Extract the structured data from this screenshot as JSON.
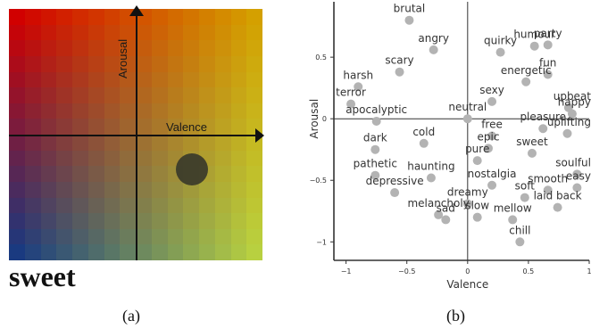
{
  "left_panel": {
    "valence_label": "Valence",
    "arousal_label": "Arousal",
    "word": "sweet",
    "caption": "(a)",
    "colors": {
      "top_left": "#d10000",
      "top_right": "#d4a000",
      "bottom_left": "#1a3a80",
      "bottom_right": "#b8d040",
      "marker": "#3a3a2a"
    }
  },
  "right_panel": {
    "caption": "(b)"
  },
  "chart_data": {
    "type": "scatter",
    "xlabel": "Valence",
    "ylabel": "Arousal",
    "xlim": [
      -1.1,
      1
    ],
    "ylim": [
      -1.15,
      0.95
    ],
    "x_ticks": [
      -1,
      -0.5,
      0,
      0.5,
      1
    ],
    "x_tick_labels": [
      "−1",
      "−0.5",
      "0",
      "0.5",
      "1"
    ],
    "y_ticks": [
      -1,
      -0.5,
      0,
      0.5
    ],
    "y_tick_labels": [
      "−1",
      "−0.5",
      "0",
      "0.5"
    ],
    "point_color": "#b3b3b3",
    "points": [
      {
        "label": "brutal",
        "x": -0.48,
        "y": 0.8
      },
      {
        "label": "angry",
        "x": -0.28,
        "y": 0.56
      },
      {
        "label": "quirky",
        "x": 0.27,
        "y": 0.54
      },
      {
        "label": "humour",
        "x": 0.55,
        "y": 0.59
      },
      {
        "label": "party",
        "x": 0.66,
        "y": 0.6
      },
      {
        "label": "scary",
        "x": -0.56,
        "y": 0.38
      },
      {
        "label": "fun",
        "x": 0.66,
        "y": 0.36
      },
      {
        "label": "harsh",
        "x": -0.9,
        "y": 0.26
      },
      {
        "label": "energetic",
        "x": 0.48,
        "y": 0.3
      },
      {
        "label": "sexy",
        "x": 0.2,
        "y": 0.14
      },
      {
        "label": "terror",
        "x": -0.96,
        "y": 0.12
      },
      {
        "label": "upbeat",
        "x": 0.83,
        "y": 0.09
      },
      {
        "label": "happy",
        "x": 0.86,
        "y": 0.04
      },
      {
        "label": "apocalyptic",
        "x": -0.75,
        "y": -0.02
      },
      {
        "label": "neutral",
        "x": 0.0,
        "y": 0.0
      },
      {
        "label": "pleasure",
        "x": 0.62,
        "y": -0.08
      },
      {
        "label": "cold",
        "x": -0.36,
        "y": -0.2
      },
      {
        "label": "free",
        "x": 0.2,
        "y": -0.14
      },
      {
        "label": "uplifting",
        "x": 0.82,
        "y": -0.12
      },
      {
        "label": "sweet",
        "x": 0.53,
        "y": -0.28
      },
      {
        "label": "dark",
        "x": -0.76,
        "y": -0.25
      },
      {
        "label": "epic",
        "x": 0.17,
        "y": -0.24
      },
      {
        "label": "pure",
        "x": 0.08,
        "y": -0.34
      },
      {
        "label": "soulful",
        "x": 0.9,
        "y": -0.45
      },
      {
        "label": "pathetic",
        "x": -0.76,
        "y": -0.46
      },
      {
        "label": "haunting",
        "x": -0.3,
        "y": -0.48
      },
      {
        "label": "nostalgia",
        "x": 0.2,
        "y": -0.54
      },
      {
        "label": "smooth",
        "x": 0.66,
        "y": -0.58
      },
      {
        "label": "depressive",
        "x": -0.6,
        "y": -0.6
      },
      {
        "label": "dreamy",
        "x": 0.0,
        "y": -0.69
      },
      {
        "label": "soft",
        "x": 0.47,
        "y": -0.64
      },
      {
        "label": "easy",
        "x": 0.9,
        "y": -0.56
      },
      {
        "label": "melancholy",
        "x": -0.24,
        "y": -0.78
      },
      {
        "label": "sad",
        "x": -0.18,
        "y": -0.82
      },
      {
        "label": "slow",
        "x": 0.08,
        "y": -0.8
      },
      {
        "label": "mellow",
        "x": 0.37,
        "y": -0.82
      },
      {
        "label": "laid back",
        "x": 0.74,
        "y": -0.72
      },
      {
        "label": "chill",
        "x": 0.43,
        "y": -1.0
      }
    ]
  }
}
